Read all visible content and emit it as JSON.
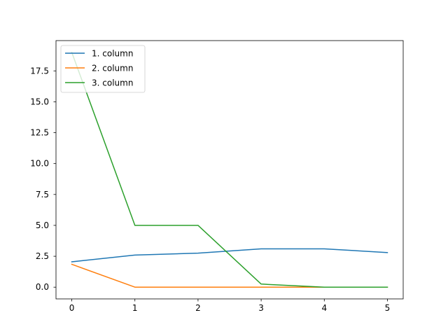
{
  "chart_data": {
    "type": "line",
    "x": [
      0,
      1,
      2,
      3,
      4,
      5
    ],
    "series": [
      {
        "name": "1. column",
        "color": "#1f77b4",
        "values": [
          2.05,
          2.6,
          2.75,
          3.1,
          3.1,
          2.8
        ]
      },
      {
        "name": "2. column",
        "color": "#ff7f0e",
        "values": [
          1.85,
          0.0,
          0.0,
          0.0,
          0.0,
          0.0
        ]
      },
      {
        "name": "3. column",
        "color": "#2ca02c",
        "values": [
          19.0,
          5.0,
          5.0,
          0.25,
          0.0,
          0.0
        ]
      }
    ],
    "xticks": [
      "0",
      "1",
      "2",
      "3",
      "4",
      "5"
    ],
    "yticks": [
      "0.0",
      "2.5",
      "5.0",
      "7.5",
      "10.0",
      "12.5",
      "15.0",
      "17.5"
    ],
    "xlim": [
      -0.25,
      5.25
    ],
    "ylim": [
      -0.95,
      19.95
    ],
    "legend_position": "upper left",
    "grid": false
  }
}
